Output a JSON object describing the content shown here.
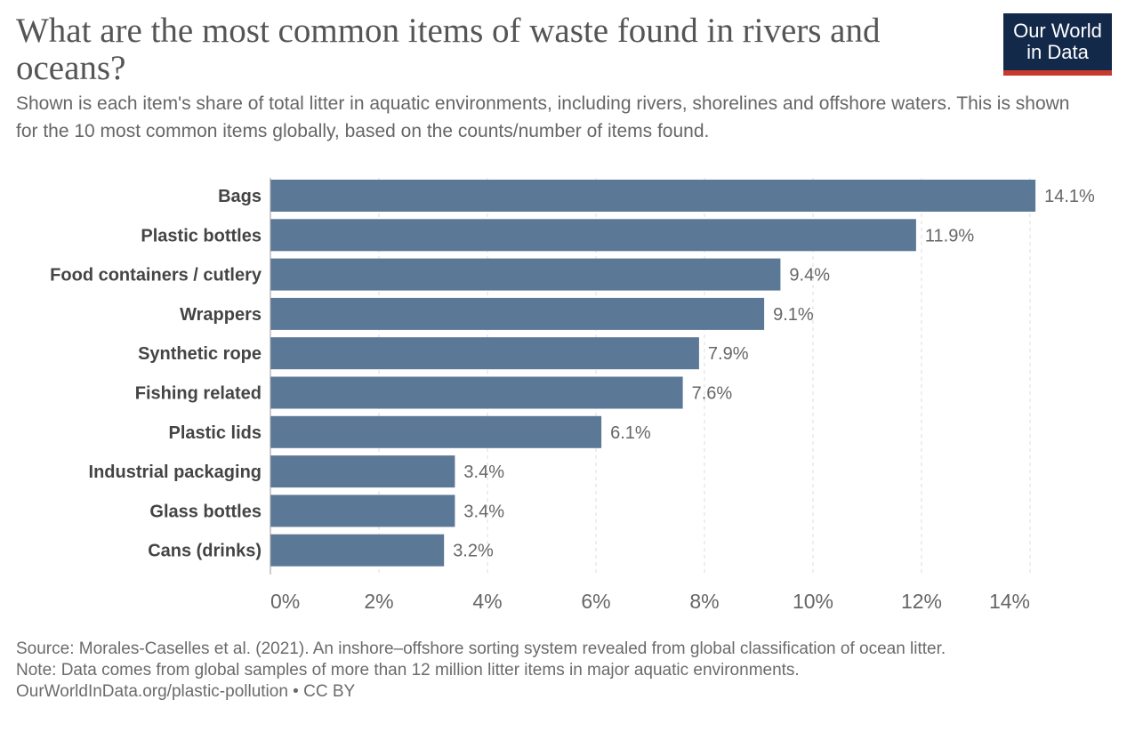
{
  "title": "What are the most common items of waste found in rivers and oceans?",
  "subtitle": "Shown is each item's share of total litter in aquatic environments, including rivers, shorelines and offshore waters. This is shown for the 10 most common items globally, based on the counts/number of items found.",
  "logo": {
    "line1": "Our World",
    "line2": "in Data"
  },
  "colors": {
    "bar": "#5b7896",
    "grid": "#dddddd",
    "axis": "#999999",
    "label": "#444444",
    "value": "#666666",
    "logo_bg": "#12294a",
    "logo_accent": "#c8392e"
  },
  "chart_data": {
    "type": "bar",
    "orientation": "horizontal",
    "categories": [
      "Bags",
      "Plastic bottles",
      "Food containers / cutlery",
      "Wrappers",
      "Synthetic rope",
      "Fishing related",
      "Plastic lids",
      "Industrial packaging",
      "Glass bottles",
      "Cans (drinks)"
    ],
    "values": [
      14.1,
      11.9,
      9.4,
      9.1,
      7.9,
      7.6,
      6.1,
      3.4,
      3.4,
      3.2
    ],
    "value_labels": [
      "14.1%",
      "11.9%",
      "9.4%",
      "9.1%",
      "7.9%",
      "7.6%",
      "6.1%",
      "3.4%",
      "3.4%",
      "3.2%"
    ],
    "xlim": [
      0,
      14
    ],
    "xticks": [
      0,
      2,
      4,
      6,
      8,
      10,
      12,
      14
    ],
    "xtick_labels": [
      "0%",
      "2%",
      "4%",
      "6%",
      "8%",
      "10%",
      "12%",
      "14%"
    ],
    "grid": true,
    "xlabel": "",
    "ylabel": ""
  },
  "footer": {
    "source": "Source: Morales-Caselles et al. (2021). An inshore–offshore sorting system revealed from global classification of ocean litter.",
    "note": "Note: Data comes from global samples of more than 12 million litter items in major aquatic environments.",
    "link": "OurWorldInData.org/plastic-pollution",
    "license": " • CC BY"
  }
}
